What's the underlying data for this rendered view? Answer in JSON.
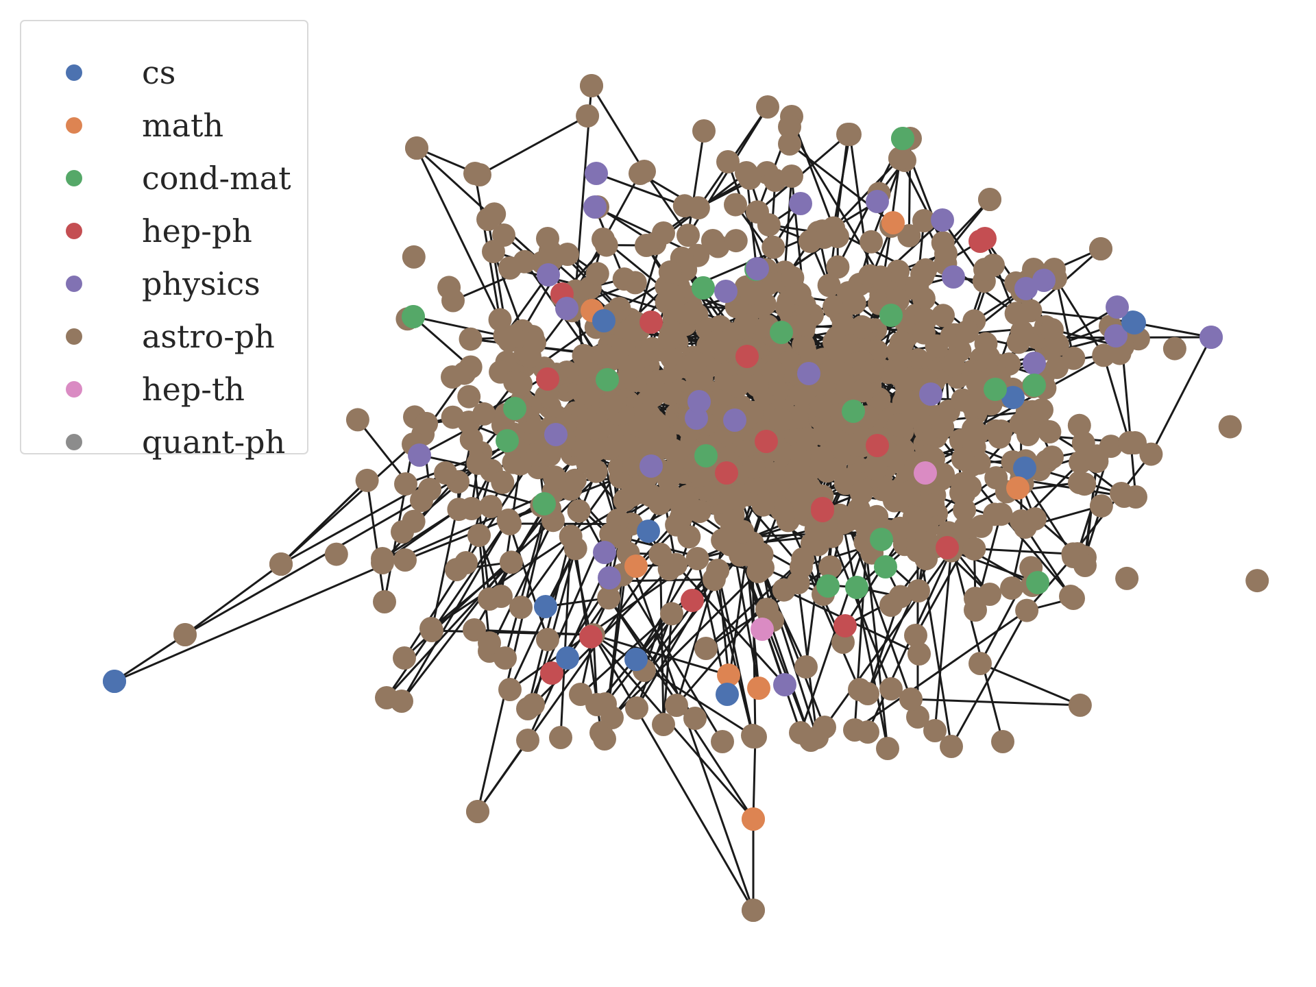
{
  "legend": {
    "items": [
      {
        "label": "cs",
        "color": "#4c72b0"
      },
      {
        "label": "math",
        "color": "#dd8452"
      },
      {
        "label": "cond-mat",
        "color": "#55a868"
      },
      {
        "label": "hep-ph",
        "color": "#c44e52"
      },
      {
        "label": "physics",
        "color": "#8172b3"
      },
      {
        "label": "astro-ph",
        "color": "#937860"
      },
      {
        "label": "hep-th",
        "color": "#da8bc3"
      },
      {
        "label": "quant-ph",
        "color": "#8c8c8c"
      }
    ]
  }
}
